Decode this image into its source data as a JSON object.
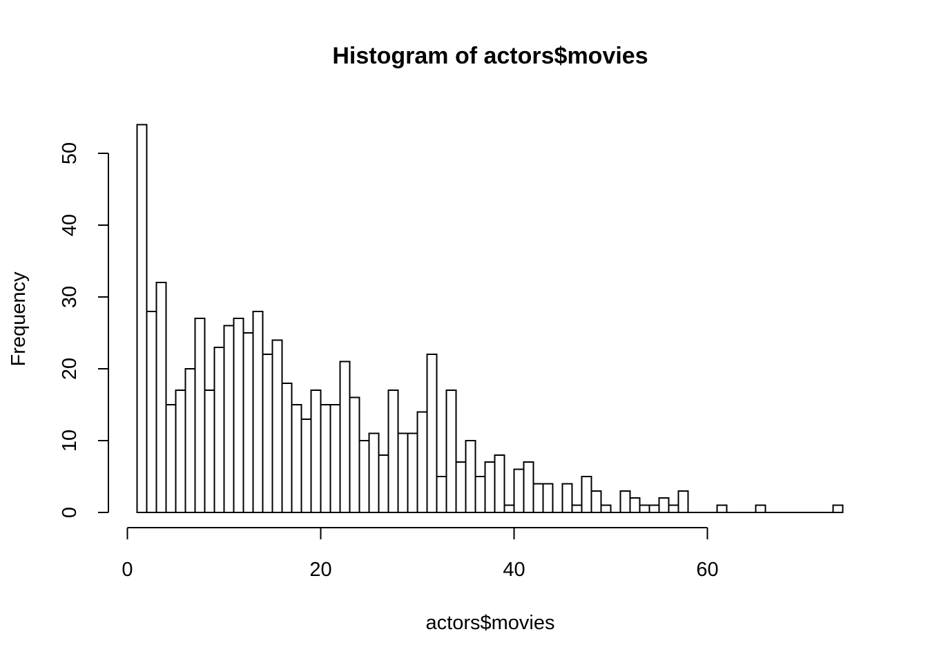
{
  "chart_data": {
    "type": "bar",
    "title": "Histogram of actors$movies",
    "xlabel": "actors$movies",
    "ylabel": "Frequency",
    "bin_width": 1,
    "first_bin_start": 1,
    "xlim": [
      0,
      74
    ],
    "ylim": [
      0,
      54
    ],
    "x_ticks": [
      0,
      20,
      40,
      60
    ],
    "x_axis_extent": [
      0,
      60
    ],
    "y_ticks": [
      0,
      10,
      20,
      30,
      40,
      50
    ],
    "grid": false,
    "legend": "none",
    "bar_color": "#ffffff",
    "stroke_color": "#000000",
    "counts": [
      54,
      28,
      32,
      15,
      17,
      20,
      27,
      17,
      23,
      26,
      27,
      25,
      28,
      22,
      24,
      18,
      15,
      13,
      17,
      15,
      15,
      21,
      16,
      10,
      11,
      8,
      17,
      11,
      11,
      14,
      22,
      5,
      17,
      7,
      10,
      5,
      7,
      8,
      1,
      6,
      7,
      4,
      4,
      0,
      4,
      1,
      5,
      3,
      1,
      0,
      3,
      2,
      1,
      1,
      2,
      1,
      3,
      0,
      0,
      0,
      1,
      0,
      0,
      0,
      1,
      0,
      0,
      0,
      0,
      0,
      0,
      0,
      1
    ]
  }
}
